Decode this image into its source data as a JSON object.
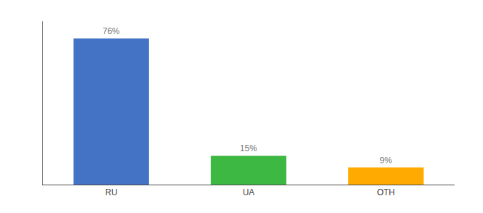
{
  "chart_data": {
    "type": "bar",
    "categories": [
      "RU",
      "UA",
      "OTH"
    ],
    "values": [
      76,
      15,
      9
    ],
    "value_labels": [
      "76%",
      "15%",
      "9%"
    ],
    "colors": [
      "#4472c4",
      "#3cb843",
      "#ffaa00"
    ],
    "ylim": [
      0,
      85
    ],
    "data_labels": true,
    "tick_labels": "x",
    "grid": false
  }
}
